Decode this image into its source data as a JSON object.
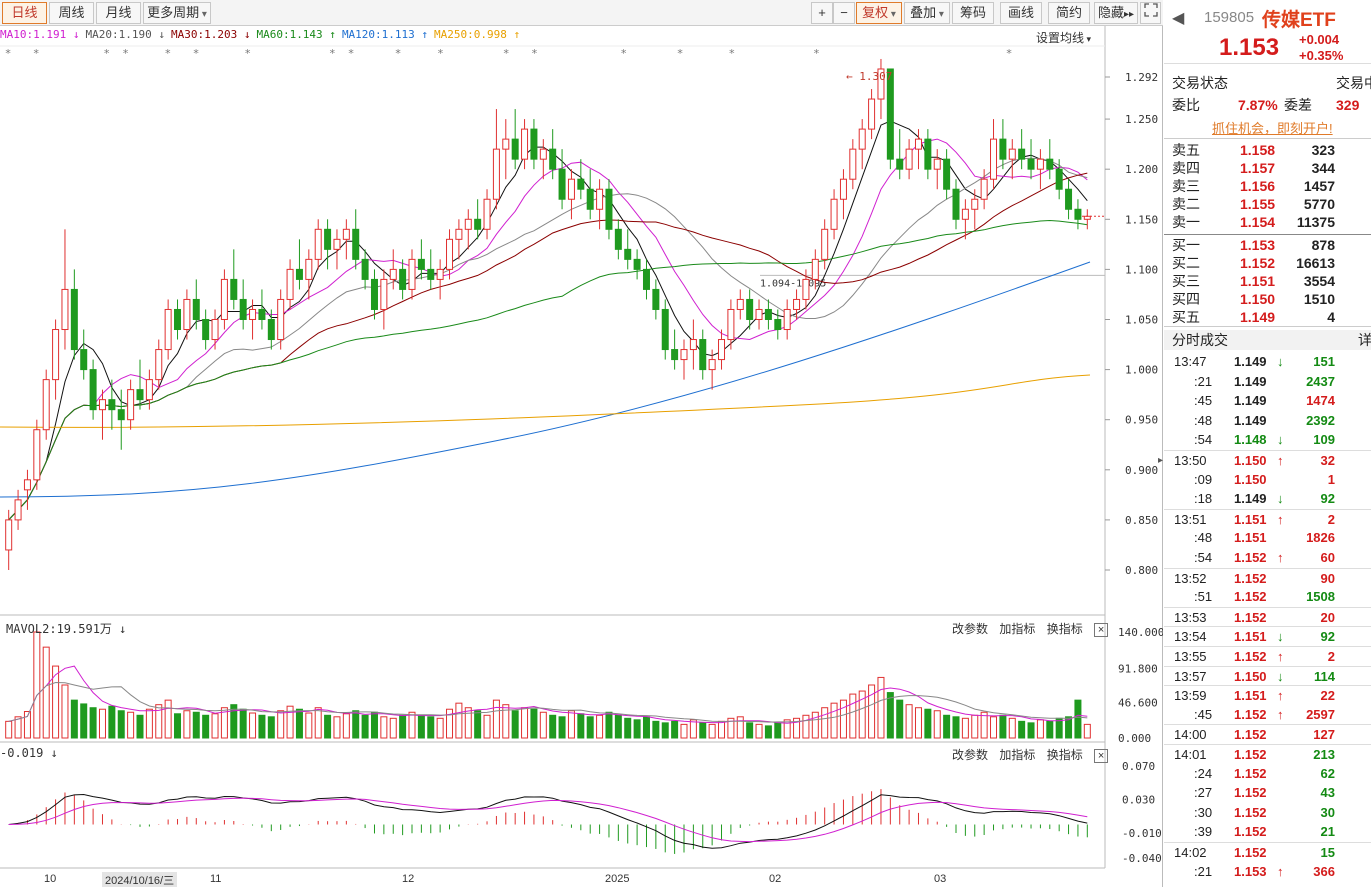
{
  "toolbar": {
    "tabs": [
      "日线",
      "周线",
      "月线",
      "更多周期"
    ],
    "right_buttons": [
      "+",
      "−",
      "复权",
      "叠加",
      "筹码",
      "画线",
      "简约",
      "隐藏"
    ],
    "hide_arrows": "▸▸",
    "fullscreen_icon": "fullscreen-icon"
  },
  "ma_legend": [
    {
      "text": "MA10:1.191 ↓",
      "color": "#d020d0"
    },
    {
      "text": "MA20:1.190 ↓",
      "color": "#555555"
    },
    {
      "text": "MA30:1.203 ↓",
      "color": "#8b0000"
    },
    {
      "text": "MA60:1.143 ↑",
      "color": "#1a8a1a"
    },
    {
      "text": "MA120:1.113 ↑",
      "color": "#1e6fd0"
    },
    {
      "text": "MA250:0.998 ↑",
      "color": "#e8a000"
    }
  ],
  "set_ma_label": "设置均线",
  "price_axis": [
    "1.292",
    "1.250",
    "1.200",
    "1.150",
    "1.100",
    "1.050",
    "1.000",
    "0.950",
    "0.900",
    "0.850",
    "0.800"
  ],
  "annotations": {
    "high": "1.307",
    "range": "1.094-1.095"
  },
  "volume_panel": {
    "label": "MAVOL2:19.591万 ↓",
    "axis": [
      "140.000",
      "91.800",
      "46.600",
      "0.000"
    ],
    "buttons": [
      "改参数",
      "加指标",
      "换指标"
    ]
  },
  "macd_panel": {
    "label": "-0.019 ↓",
    "axis": [
      "0.070",
      "0.030",
      "-0.010",
      "-0.040"
    ],
    "buttons": [
      "改参数",
      "加指标",
      "换指标"
    ]
  },
  "x_axis": [
    {
      "label": "10"
    },
    {
      "label": "2024/10/16/三",
      "current": true
    },
    {
      "label": "11"
    },
    {
      "label": "12"
    },
    {
      "label": "2025"
    },
    {
      "label": "02"
    },
    {
      "label": "03"
    }
  ],
  "quote": {
    "code": "159805",
    "name": "传媒ETF",
    "price": "1.153",
    "change": "+0.004",
    "change_pct": "+0.35%",
    "status_label": "交易状态",
    "status_value": "交易中",
    "ratio_label": "委比",
    "ratio_value": "7.87%",
    "diff_label": "委差",
    "diff_value": "329",
    "promo": "抓住机会，即刻开户!"
  },
  "asks": [
    {
      "label": "卖五",
      "price": "1.158",
      "vol": "323"
    },
    {
      "label": "卖四",
      "price": "1.157",
      "vol": "344"
    },
    {
      "label": "卖三",
      "price": "1.156",
      "vol": "1457"
    },
    {
      "label": "卖二",
      "price": "1.155",
      "vol": "5770"
    },
    {
      "label": "卖一",
      "price": "1.154",
      "vol": "11375"
    }
  ],
  "bids": [
    {
      "label": "买一",
      "price": "1.153",
      "vol": "878"
    },
    {
      "label": "买二",
      "price": "1.152",
      "vol": "16613"
    },
    {
      "label": "买三",
      "price": "1.151",
      "vol": "3554"
    },
    {
      "label": "买四",
      "price": "1.150",
      "vol": "1510"
    },
    {
      "label": "买五",
      "price": "1.149",
      "vol": "4"
    }
  ],
  "ticks_title": "分时成交",
  "ticks_detail": "详",
  "ticks": [
    {
      "time": "13:47",
      "price": "1.149",
      "dir": "down",
      "vol": "151",
      "pc": "blk",
      "vc": "green"
    },
    {
      "time": ":21",
      "price": "1.149",
      "dir": "",
      "vol": "2437",
      "pc": "blk",
      "vc": "green"
    },
    {
      "time": ":45",
      "price": "1.149",
      "dir": "",
      "vol": "1474",
      "pc": "blk",
      "vc": "red"
    },
    {
      "time": ":48",
      "price": "1.149",
      "dir": "",
      "vol": "2392",
      "pc": "blk",
      "vc": "green"
    },
    {
      "time": ":54",
      "price": "1.148",
      "dir": "down",
      "vol": "109",
      "pc": "green",
      "vc": "green"
    },
    {
      "time": "13:50",
      "price": "1.150",
      "dir": "up",
      "vol": "32",
      "pc": "red",
      "vc": "red"
    },
    {
      "time": ":09",
      "price": "1.150",
      "dir": "",
      "vol": "1",
      "pc": "red",
      "vc": "red"
    },
    {
      "time": ":18",
      "price": "1.149",
      "dir": "down",
      "vol": "92",
      "pc": "blk",
      "vc": "green"
    },
    {
      "time": "13:51",
      "price": "1.151",
      "dir": "up",
      "vol": "2",
      "pc": "red",
      "vc": "red"
    },
    {
      "time": ":48",
      "price": "1.151",
      "dir": "",
      "vol": "1826",
      "pc": "red",
      "vc": "red"
    },
    {
      "time": ":54",
      "price": "1.152",
      "dir": "up",
      "vol": "60",
      "pc": "red",
      "vc": "red"
    },
    {
      "time": "13:52",
      "price": "1.152",
      "dir": "",
      "vol": "90",
      "pc": "red",
      "vc": "red"
    },
    {
      "time": ":51",
      "price": "1.152",
      "dir": "",
      "vol": "1508",
      "pc": "red",
      "vc": "green"
    },
    {
      "time": "13:53",
      "price": "1.152",
      "dir": "",
      "vol": "20",
      "pc": "red",
      "vc": "red"
    },
    {
      "time": "13:54",
      "price": "1.151",
      "dir": "down",
      "vol": "92",
      "pc": "red",
      "vc": "green"
    },
    {
      "time": "13:55",
      "price": "1.152",
      "dir": "up",
      "vol": "2",
      "pc": "red",
      "vc": "red"
    },
    {
      "time": "13:57",
      "price": "1.150",
      "dir": "down",
      "vol": "114",
      "pc": "red",
      "vc": "green"
    },
    {
      "time": "13:59",
      "price": "1.151",
      "dir": "up",
      "vol": "22",
      "pc": "red",
      "vc": "red"
    },
    {
      "time": ":45",
      "price": "1.152",
      "dir": "up",
      "vol": "2597",
      "pc": "red",
      "vc": "red"
    },
    {
      "time": "14:00",
      "price": "1.152",
      "dir": "",
      "vol": "127",
      "pc": "red",
      "vc": "red"
    },
    {
      "time": "14:01",
      "price": "1.152",
      "dir": "",
      "vol": "213",
      "pc": "red",
      "vc": "green"
    },
    {
      "time": ":24",
      "price": "1.152",
      "dir": "",
      "vol": "62",
      "pc": "red",
      "vc": "green"
    },
    {
      "time": ":27",
      "price": "1.152",
      "dir": "",
      "vol": "43",
      "pc": "red",
      "vc": "green"
    },
    {
      "time": ":30",
      "price": "1.152",
      "dir": "",
      "vol": "30",
      "pc": "red",
      "vc": "green"
    },
    {
      "time": ":39",
      "price": "1.152",
      "dir": "",
      "vol": "21",
      "pc": "red",
      "vc": "green"
    },
    {
      "time": "14:02",
      "price": "1.152",
      "dir": "",
      "vol": "15",
      "pc": "red",
      "vc": "green"
    },
    {
      "time": ":21",
      "price": "1.153",
      "dir": "up",
      "vol": "366",
      "pc": "red",
      "vc": "red"
    }
  ],
  "chart_data": {
    "type": "candlestick",
    "price_range": [
      0.78,
      1.31
    ],
    "candles": [
      [
        0.82,
        0.86,
        0.8,
        0.85
      ],
      [
        0.85,
        0.88,
        0.84,
        0.87
      ],
      [
        0.88,
        0.9,
        0.86,
        0.89
      ],
      [
        0.89,
        0.95,
        0.88,
        0.94
      ],
      [
        0.94,
        1.0,
        0.93,
        0.99
      ],
      [
        0.99,
        1.05,
        0.97,
        1.04
      ],
      [
        1.04,
        1.14,
        1.02,
        1.08
      ],
      [
        1.08,
        1.1,
        1.01,
        1.02
      ],
      [
        1.02,
        1.04,
        0.99,
        1.0
      ],
      [
        1.0,
        1.01,
        0.95,
        0.96
      ],
      [
        0.96,
        0.98,
        0.93,
        0.97
      ],
      [
        0.97,
        0.99,
        0.94,
        0.96
      ],
      [
        0.96,
        0.98,
        0.92,
        0.95
      ],
      [
        0.95,
        0.99,
        0.94,
        0.98
      ],
      [
        0.98,
        1.01,
        0.96,
        0.97
      ],
      [
        0.97,
        1.0,
        0.96,
        0.99
      ],
      [
        0.99,
        1.03,
        0.98,
        1.02
      ],
      [
        1.02,
        1.07,
        1.01,
        1.06
      ],
      [
        1.06,
        1.07,
        1.03,
        1.04
      ],
      [
        1.04,
        1.08,
        1.03,
        1.07
      ],
      [
        1.07,
        1.09,
        1.04,
        1.05
      ],
      [
        1.05,
        1.06,
        1.02,
        1.03
      ],
      [
        1.03,
        1.06,
        1.02,
        1.05
      ],
      [
        1.05,
        1.1,
        1.04,
        1.09
      ],
      [
        1.09,
        1.12,
        1.06,
        1.07
      ],
      [
        1.07,
        1.09,
        1.04,
        1.05
      ],
      [
        1.05,
        1.07,
        1.03,
        1.06
      ],
      [
        1.06,
        1.08,
        1.04,
        1.05
      ],
      [
        1.05,
        1.06,
        1.02,
        1.03
      ],
      [
        1.03,
        1.08,
        1.02,
        1.07
      ],
      [
        1.07,
        1.11,
        1.06,
        1.1
      ],
      [
        1.1,
        1.13,
        1.08,
        1.09
      ],
      [
        1.09,
        1.12,
        1.07,
        1.11
      ],
      [
        1.11,
        1.15,
        1.1,
        1.14
      ],
      [
        1.14,
        1.15,
        1.1,
        1.12
      ],
      [
        1.12,
        1.14,
        1.1,
        1.13
      ],
      [
        1.13,
        1.15,
        1.11,
        1.14
      ],
      [
        1.14,
        1.16,
        1.1,
        1.11
      ],
      [
        1.11,
        1.12,
        1.08,
        1.09
      ],
      [
        1.09,
        1.1,
        1.05,
        1.06
      ],
      [
        1.06,
        1.1,
        1.04,
        1.09
      ],
      [
        1.09,
        1.12,
        1.08,
        1.1
      ],
      [
        1.1,
        1.11,
        1.07,
        1.08
      ],
      [
        1.08,
        1.12,
        1.07,
        1.11
      ],
      [
        1.11,
        1.13,
        1.09,
        1.1
      ],
      [
        1.1,
        1.12,
        1.08,
        1.09
      ],
      [
        1.09,
        1.11,
        1.07,
        1.1
      ],
      [
        1.1,
        1.14,
        1.09,
        1.13
      ],
      [
        1.13,
        1.15,
        1.11,
        1.14
      ],
      [
        1.14,
        1.16,
        1.12,
        1.15
      ],
      [
        1.15,
        1.17,
        1.13,
        1.14
      ],
      [
        1.14,
        1.18,
        1.13,
        1.17
      ],
      [
        1.17,
        1.26,
        1.16,
        1.22
      ],
      [
        1.22,
        1.25,
        1.19,
        1.23
      ],
      [
        1.23,
        1.26,
        1.2,
        1.21
      ],
      [
        1.21,
        1.25,
        1.2,
        1.24
      ],
      [
        1.24,
        1.25,
        1.2,
        1.21
      ],
      [
        1.21,
        1.23,
        1.19,
        1.22
      ],
      [
        1.22,
        1.24,
        1.19,
        1.2
      ],
      [
        1.2,
        1.22,
        1.16,
        1.17
      ],
      [
        1.17,
        1.2,
        1.15,
        1.19
      ],
      [
        1.19,
        1.21,
        1.17,
        1.18
      ],
      [
        1.18,
        1.2,
        1.15,
        1.16
      ],
      [
        1.16,
        1.19,
        1.14,
        1.18
      ],
      [
        1.18,
        1.19,
        1.13,
        1.14
      ],
      [
        1.14,
        1.15,
        1.11,
        1.12
      ],
      [
        1.12,
        1.14,
        1.1,
        1.11
      ],
      [
        1.11,
        1.12,
        1.09,
        1.1
      ],
      [
        1.1,
        1.11,
        1.07,
        1.08
      ],
      [
        1.08,
        1.09,
        1.05,
        1.06
      ],
      [
        1.06,
        1.07,
        1.01,
        1.02
      ],
      [
        1.02,
        1.04,
        1.0,
        1.01
      ],
      [
        1.01,
        1.03,
        0.99,
        1.02
      ],
      [
        1.02,
        1.05,
        1.0,
        1.03
      ],
      [
        1.03,
        1.04,
        0.99,
        1.0
      ],
      [
        1.0,
        1.02,
        0.98,
        1.01
      ],
      [
        1.01,
        1.04,
        1.0,
        1.03
      ],
      [
        1.03,
        1.07,
        1.02,
        1.06
      ],
      [
        1.06,
        1.08,
        1.05,
        1.07
      ],
      [
        1.07,
        1.08,
        1.04,
        1.05
      ],
      [
        1.05,
        1.07,
        1.04,
        1.06
      ],
      [
        1.06,
        1.07,
        1.04,
        1.05
      ],
      [
        1.05,
        1.06,
        1.03,
        1.04
      ],
      [
        1.04,
        1.07,
        1.03,
        1.06
      ],
      [
        1.06,
        1.08,
        1.05,
        1.07
      ],
      [
        1.07,
        1.1,
        1.06,
        1.09
      ],
      [
        1.09,
        1.12,
        1.08,
        1.11
      ],
      [
        1.11,
        1.15,
        1.1,
        1.14
      ],
      [
        1.14,
        1.18,
        1.13,
        1.17
      ],
      [
        1.17,
        1.2,
        1.15,
        1.19
      ],
      [
        1.19,
        1.23,
        1.18,
        1.22
      ],
      [
        1.22,
        1.25,
        1.2,
        1.24
      ],
      [
        1.24,
        1.28,
        1.23,
        1.27
      ],
      [
        1.27,
        1.31,
        1.25,
        1.3
      ],
      [
        1.3,
        1.3,
        1.2,
        1.21
      ],
      [
        1.21,
        1.24,
        1.19,
        1.2
      ],
      [
        1.2,
        1.23,
        1.19,
        1.22
      ],
      [
        1.22,
        1.24,
        1.2,
        1.23
      ],
      [
        1.23,
        1.24,
        1.19,
        1.2
      ],
      [
        1.2,
        1.22,
        1.18,
        1.21
      ],
      [
        1.21,
        1.22,
        1.17,
        1.18
      ],
      [
        1.18,
        1.19,
        1.14,
        1.15
      ],
      [
        1.15,
        1.17,
        1.13,
        1.16
      ],
      [
        1.16,
        1.18,
        1.14,
        1.17
      ],
      [
        1.17,
        1.2,
        1.16,
        1.19
      ],
      [
        1.19,
        1.25,
        1.18,
        1.23
      ],
      [
        1.23,
        1.25,
        1.2,
        1.21
      ],
      [
        1.21,
        1.23,
        1.19,
        1.22
      ],
      [
        1.22,
        1.24,
        1.2,
        1.21
      ],
      [
        1.21,
        1.23,
        1.19,
        1.2
      ],
      [
        1.2,
        1.22,
        1.18,
        1.21
      ],
      [
        1.21,
        1.23,
        1.19,
        1.2
      ],
      [
        1.2,
        1.21,
        1.17,
        1.18
      ],
      [
        1.18,
        1.19,
        1.15,
        1.16
      ],
      [
        1.16,
        1.17,
        1.14,
        1.15
      ],
      [
        1.15,
        1.16,
        1.14,
        1.153
      ]
    ],
    "volume": [
      22,
      28,
      35,
      140,
      120,
      95,
      70,
      50,
      45,
      40,
      38,
      42,
      36,
      34,
      30,
      38,
      44,
      50,
      32,
      36,
      34,
      30,
      32,
      40,
      44,
      38,
      33,
      30,
      28,
      36,
      42,
      38,
      33,
      40,
      30,
      28,
      32,
      36,
      30,
      34,
      28,
      26,
      30,
      34,
      30,
      28,
      26,
      38,
      46,
      40,
      36,
      30,
      50,
      44,
      36,
      40,
      38,
      34,
      30,
      28,
      36,
      32,
      28,
      30,
      34,
      30,
      26,
      24,
      28,
      22,
      20,
      22,
      18,
      24,
      20,
      18,
      22,
      26,
      28,
      20,
      18,
      16,
      20,
      24,
      26,
      30,
      34,
      40,
      46,
      50,
      58,
      62,
      70,
      80,
      60,
      50,
      44,
      40,
      38,
      36,
      30,
      28,
      26,
      30,
      34,
      28,
      30,
      26,
      22,
      20,
      24,
      22,
      26,
      28,
      50,
      18
    ],
    "macd_range": [
      -0.045,
      0.075
    ]
  }
}
